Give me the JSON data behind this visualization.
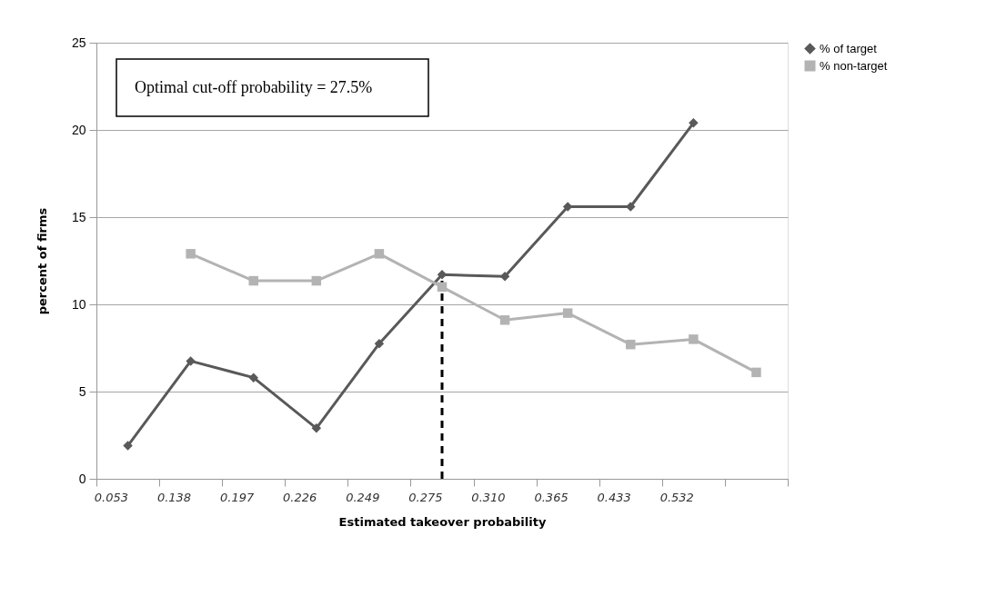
{
  "chart_data": {
    "type": "line",
    "categories": [
      "0.053",
      "0.138",
      "0.197",
      "0.226",
      "0.249",
      "0.275",
      "0.310",
      "0.365",
      "0.433",
      "0.532",
      null
    ],
    "series": [
      {
        "name": "% of  target",
        "color": "#595959",
        "marker": "diamond",
        "values": [
          1.9,
          6.75,
          5.8,
          2.9,
          7.75,
          11.7,
          11.6,
          15.6,
          15.6,
          20.4,
          null
        ]
      },
      {
        "name": "% non-target",
        "color": "#b3b3b3",
        "marker": "square",
        "values": [
          null,
          12.9,
          11.35,
          11.35,
          12.9,
          11.0,
          9.1,
          9.5,
          7.7,
          8.0,
          6.1
        ]
      }
    ],
    "xlabel": "Estimated takeover probability",
    "ylabel": "percent of firms",
    "ylim": [
      0,
      25
    ],
    "yticks": [
      0,
      5,
      10,
      15,
      20,
      25
    ],
    "grid": "y",
    "legend": "right",
    "line_style": "solid",
    "ref_lines": [
      {
        "axis": "x",
        "value": "0.275",
        "color": "#000000",
        "line_style": "dashed"
      }
    ],
    "annotations": [
      "Optimal cut-off probability = 27.5%"
    ]
  }
}
